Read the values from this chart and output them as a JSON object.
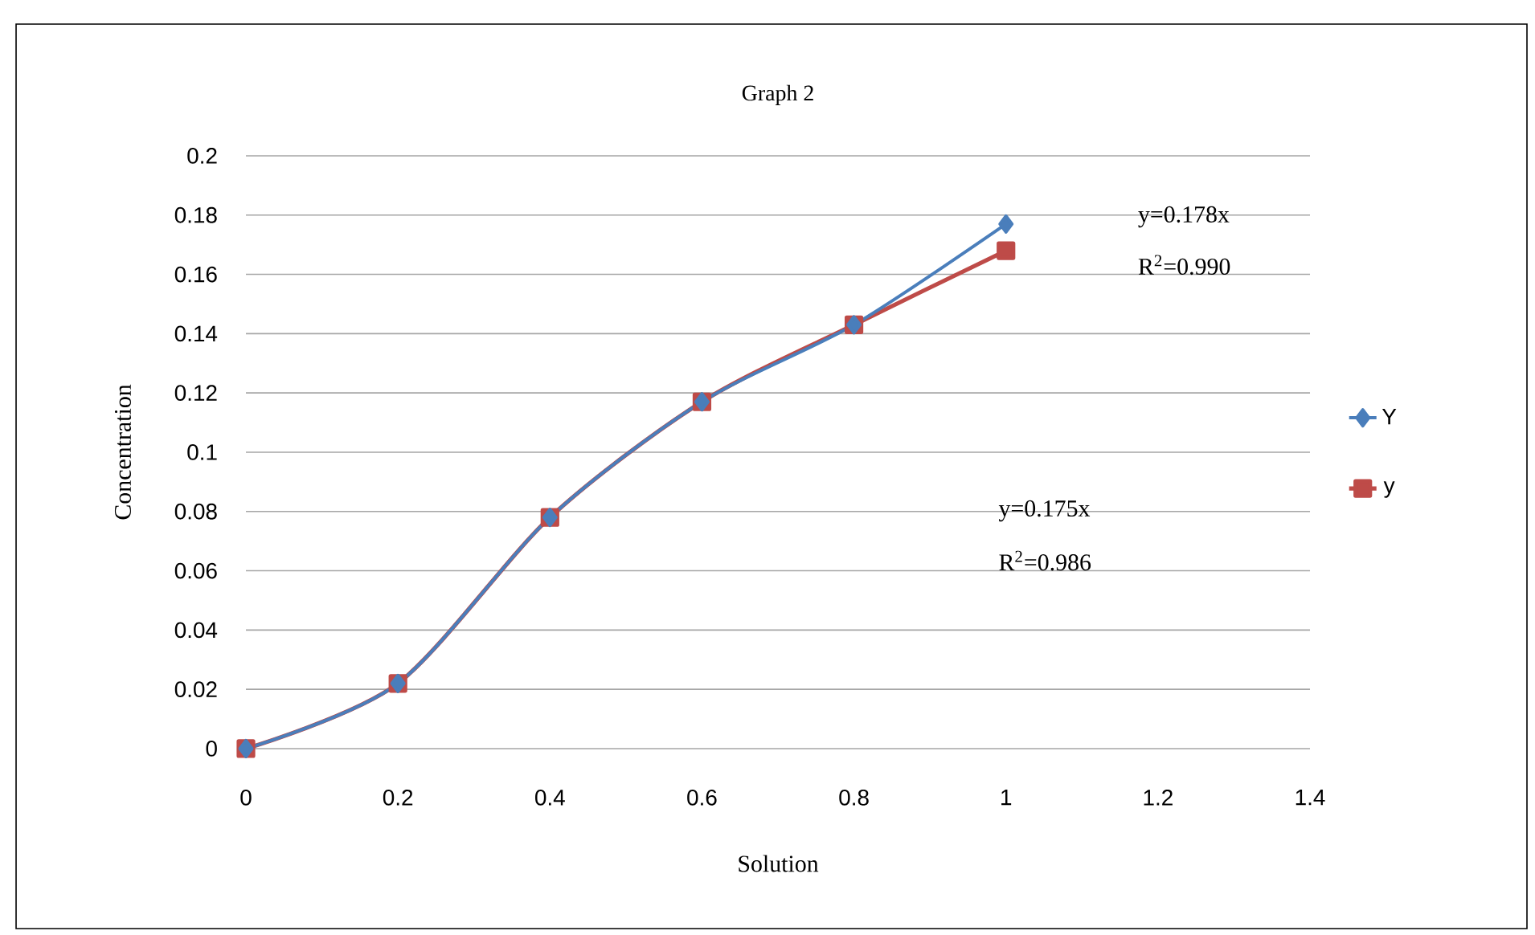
{
  "chart_data": {
    "type": "line",
    "title": "Graph 2",
    "xlabel": "Solution",
    "ylabel": "Concentration",
    "x": [
      0,
      0.2,
      0.4,
      0.6,
      0.8,
      1
    ],
    "series": [
      {
        "name": "Y",
        "color": "#4a7ebb",
        "marker": "diamond",
        "values": [
          0,
          0.022,
          0.078,
          0.117,
          0.143,
          0.177
        ]
      },
      {
        "name": "y",
        "color": "#be4b48",
        "marker": "square",
        "values": [
          0,
          0.022,
          0.078,
          0.117,
          0.143,
          0.168
        ]
      }
    ],
    "xlim": [
      0,
      1.4
    ],
    "xticks": [
      0,
      0.2,
      0.4,
      0.6,
      0.8,
      1,
      1.2,
      1.4
    ],
    "ylim": [
      0,
      0.2
    ],
    "yticks": [
      0,
      0.02,
      0.04,
      0.06,
      0.08,
      0.1,
      0.12,
      0.14,
      0.16,
      0.18,
      0.2
    ],
    "grid": "y",
    "legend": "right",
    "line_style": "solid",
    "annotations": [
      "y=0.178x",
      "R$^{2}$=0.990",
      "y=0.175x",
      "R$^{2}$=0.986"
    ]
  }
}
